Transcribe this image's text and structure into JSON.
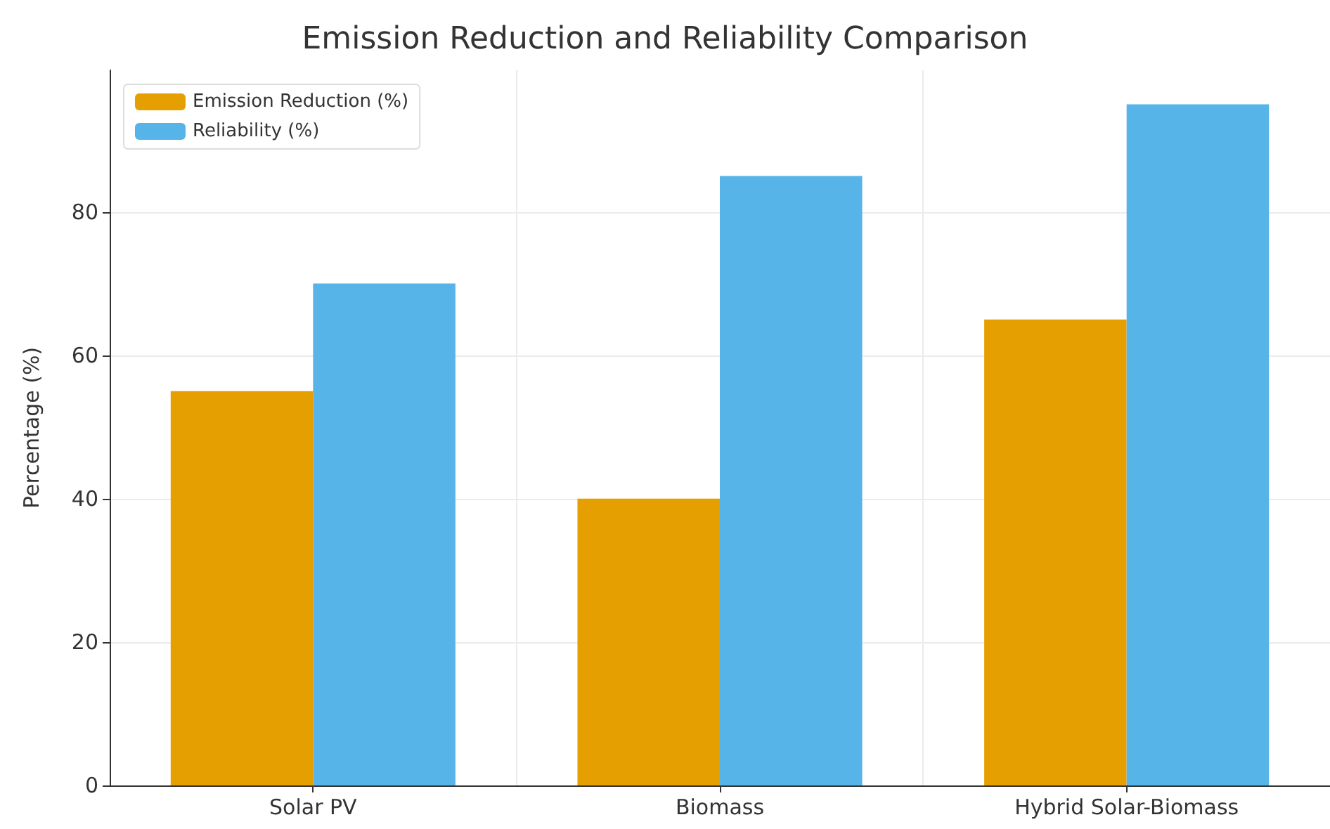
{
  "chart_data": {
    "type": "bar",
    "title": "Emission Reduction and Reliability Comparison",
    "ylabel": "Percentage (%)",
    "categories": [
      "Solar PV",
      "Biomass",
      "Hybrid Solar-Biomass"
    ],
    "series": [
      {
        "name": "Emission Reduction (%)",
        "color": "#e69f00",
        "values": [
          55,
          40,
          65
        ]
      },
      {
        "name": "Reliability (%)",
        "color": "#56b4e9",
        "values": [
          70,
          85,
          95
        ]
      }
    ],
    "ylim": [
      0,
      99.75
    ],
    "yticks": [
      0,
      20,
      40,
      60,
      80
    ],
    "grid": true,
    "legend": "top left"
  }
}
